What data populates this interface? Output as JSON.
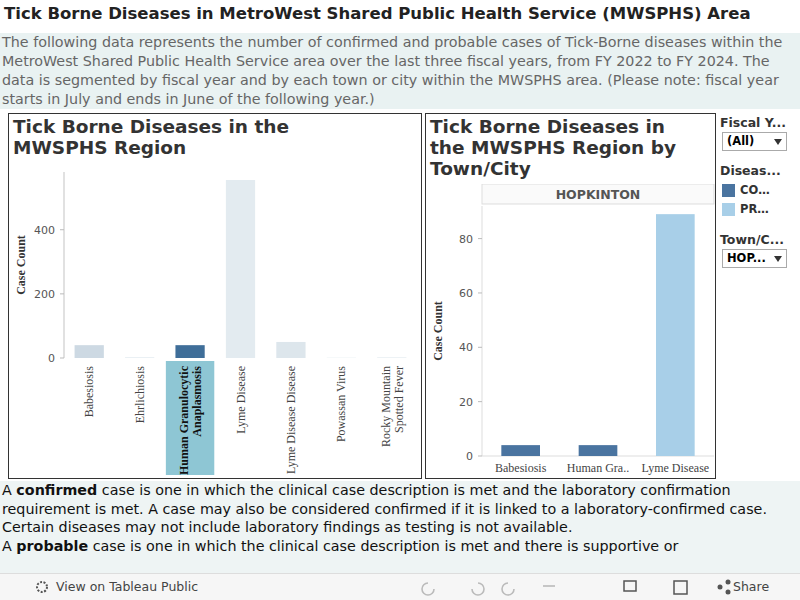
{
  "page": {
    "title": "Tick Borne Diseases in MetroWest Shared Public Health Service (MWSPHS) Area",
    "description": "The following data represents the number of confirmed and probable cases of Tick-Borne diseases within the MetroWest Shared Public Health Service area over the last three fiscal years, from FY 2022 to FY 2024. The data is segmented by fiscal year and by each town or city within the MWSPHS area. (Please note: fiscal year starts in July and ends in June of the following year.)",
    "filters": {
      "fiscal_year": {
        "label": "Fiscal Y...",
        "value": "(All)"
      },
      "town": {
        "label": "Town/C...",
        "value": "HOP..."
      }
    },
    "footnote": [
      {
        "lead": "A ",
        "term": "confirmed",
        "text": " case is one in which the clinical case description is met and the laboratory confirmation requirement is met. A case may also be considered confirmed if it is linked to a laboratory-confirmed case. Certain diseases may not include laboratory findings as testing is not available."
      },
      {
        "lead": "A ",
        "term": "probable",
        "text": " case is one in which the clinical case description is met and there is supportive or"
      }
    ],
    "toolbar": {
      "view": "View on Tableau Public",
      "share": "Share"
    }
  },
  "chart_data": [
    {
      "type": "bar",
      "title": "Tick Borne Diseases in the MWSPHS Region",
      "y_label": "Case Count",
      "categories": [
        "Babesiosis",
        "Ehrlichiosis",
        "Human Granulocytic Anaplasmosis",
        "Lyme Disease",
        "Lyme Disease Disease",
        "Powassan Virus",
        "Rocky Mountain Spotted Fever"
      ],
      "values": [
        40,
        2,
        40,
        555,
        50,
        1,
        2
      ],
      "colors": [
        "#cdd9e3",
        "#dfe8ee",
        "#3f6e99",
        "#e3ebf0",
        "#dde6ec",
        "#e3ebf0",
        "#e3ebf0"
      ],
      "ylim": [
        0,
        580
      ],
      "yticks": [
        0,
        200,
        400
      ],
      "grid": false
    },
    {
      "type": "bar",
      "title": "Tick Borne Diseases in the MWSPHS Region by Town/City",
      "subtitle": "HOPKINTON",
      "y_label": "Case Count",
      "legend_title": "Diseas...",
      "categories": [
        "Babesiosis",
        "Human Gra..",
        "Lyme Disease"
      ],
      "series": [
        {
          "name": "CO…",
          "color": "#4a74a0",
          "values": [
            4,
            4,
            0
          ]
        },
        {
          "name": "PR…",
          "color": "#a8cfe8",
          "values": [
            0,
            0,
            89
          ]
        }
      ],
      "stacked": true,
      "legend": "right",
      "ylim": [
        0,
        92
      ],
      "yticks": [
        0,
        20,
        40,
        60,
        80
      ],
      "grid": false
    }
  ]
}
